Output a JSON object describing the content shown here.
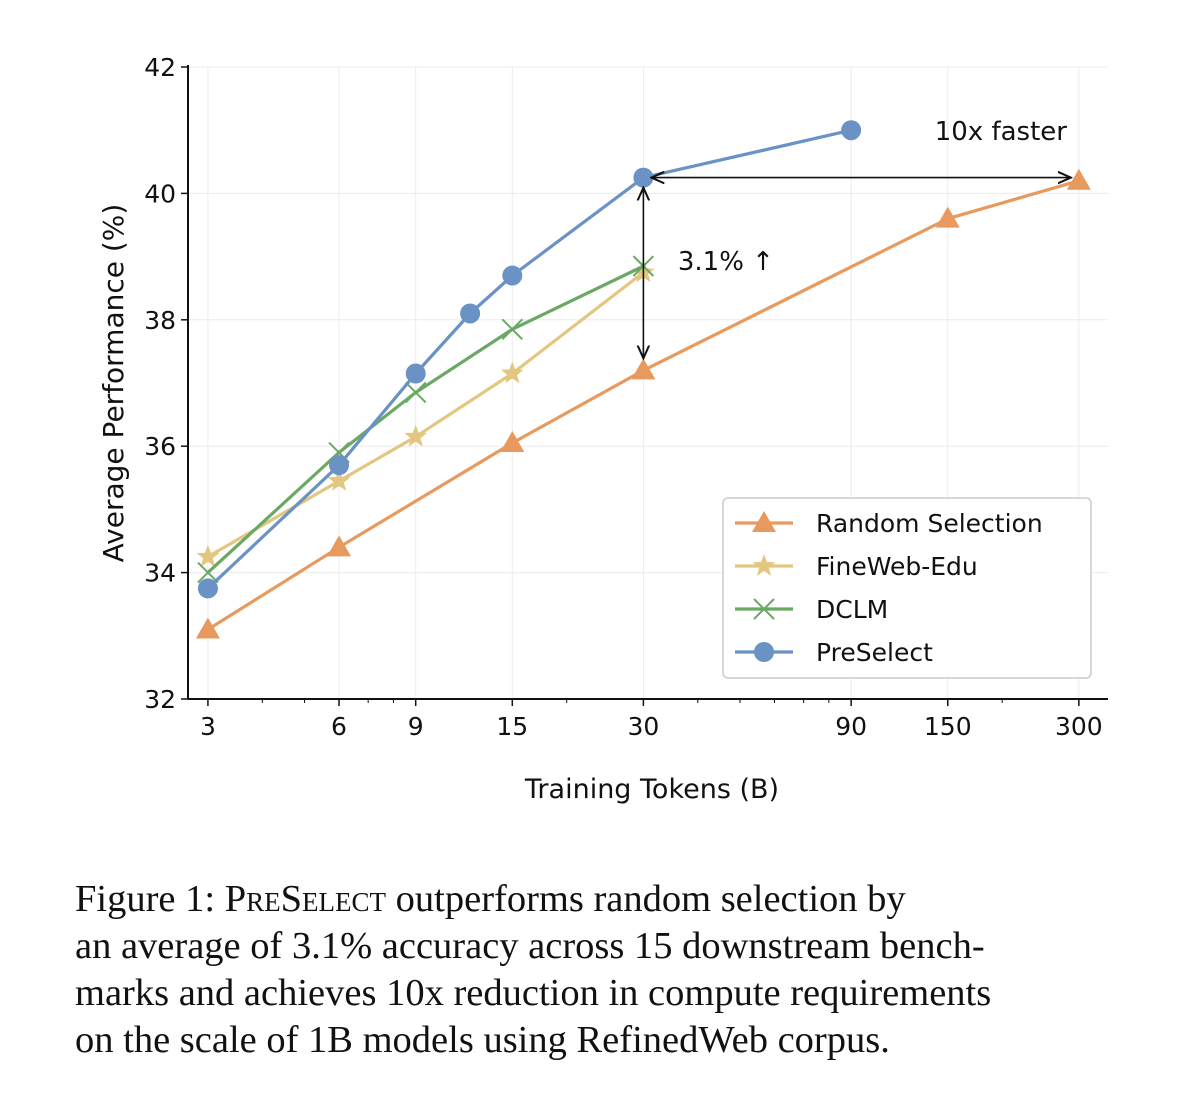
{
  "chart_data": {
    "type": "line",
    "xlabel": "Training Tokens (B)",
    "ylabel": "Average Performance (%)",
    "xscale": "log",
    "xlim": [
      2.7,
      350
    ],
    "ylim": [
      32,
      42
    ],
    "xticks": [
      3,
      6,
      9,
      15,
      30,
      90,
      150,
      300
    ],
    "xtick_labels": [
      "3",
      "6",
      "9",
      "15",
      "30",
      "90",
      "150",
      "300"
    ],
    "yticks": [
      32,
      34,
      36,
      38,
      40,
      42
    ],
    "ytick_labels": [
      "32",
      "34",
      "36",
      "38",
      "40",
      "42"
    ],
    "grid": true,
    "legend_position": "lower-right",
    "series": [
      {
        "name": "Random Selection",
        "color": "#e8995e",
        "marker": "triangle",
        "x": [
          3,
          6,
          15,
          30,
          150,
          300
        ],
        "y": [
          33.1,
          34.4,
          36.05,
          37.2,
          39.6,
          40.2
        ]
      },
      {
        "name": "FineWeb-Edu",
        "color": "#e3c67f",
        "marker": "star",
        "x": [
          3,
          6,
          9,
          15,
          30
        ],
        "y": [
          34.25,
          35.45,
          36.15,
          37.15,
          38.75
        ]
      },
      {
        "name": "DCLM",
        "color": "#6aa864",
        "marker": "x",
        "x": [
          3,
          6,
          9,
          15,
          30
        ],
        "y": [
          34.0,
          35.9,
          36.85,
          37.85,
          38.85
        ]
      },
      {
        "name": "PreSelect",
        "color": "#6a92c4",
        "marker": "circle",
        "x": [
          3,
          6,
          9,
          12,
          15,
          30,
          90
        ],
        "y": [
          33.75,
          35.7,
          37.15,
          38.1,
          38.7,
          40.25,
          41.0
        ]
      }
    ],
    "annotations": [
      {
        "text": "10x faster",
        "x": 140,
        "y": 41.0
      },
      {
        "text": "3.1% ↑",
        "x": 36,
        "y": 38.95
      }
    ],
    "arrows": [
      {
        "from": [
          30,
          40.25
        ],
        "to": [
          300,
          40.25
        ],
        "both_ends": true
      },
      {
        "from": [
          30,
          40.25
        ],
        "to": [
          30,
          37.2
        ],
        "both_ends": true
      }
    ]
  },
  "caption": {
    "label": "Figure 1: ",
    "method": "PreSelect",
    "lines": [
      " outperforms random selection by",
      "an average of 3.1% accuracy across 15 downstream bench-",
      "marks and achieves 10x reduction in compute requirements",
      "on the scale of 1B models using RefinedWeb corpus."
    ]
  }
}
